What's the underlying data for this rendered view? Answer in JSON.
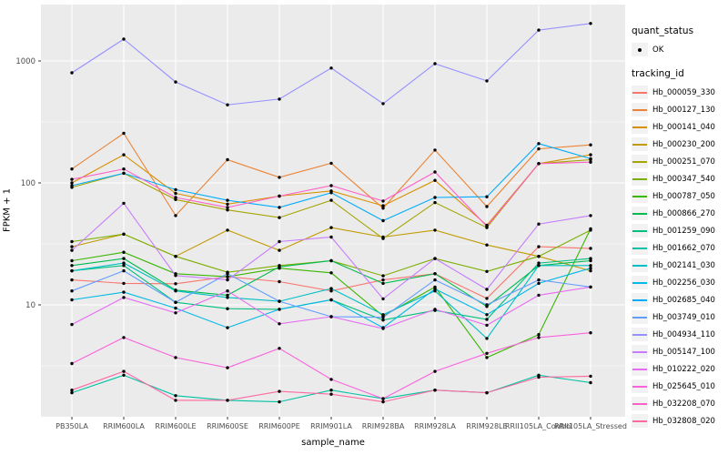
{
  "chart_data": {
    "type": "line",
    "title": "",
    "xlabel": "sample_name",
    "ylabel": "FPKM + 1",
    "yscale": "log10",
    "ylim": [
      1.4,
      2600
    ],
    "yticks": [
      10,
      100,
      1000
    ],
    "ytick_labels": [
      "10",
      "100",
      "1000"
    ],
    "yminor": [
      3.162,
      31.62,
      316.2
    ],
    "grid": "on",
    "legend_position": "right",
    "legend": {
      "quant_status_title": "quant_status",
      "quant_status_value": "OK",
      "tracking_id_title": "tracking_id"
    },
    "categories": [
      "PB350LA",
      "RRIM600LA",
      "RRIM600LE",
      "RRIM600SE",
      "RRIM600PE",
      "RRIM901LA",
      "RRIM928BA",
      "RRIM928LA",
      "RRIM928LE",
      "RRII105LA_Control",
      "RRII105LA_Stressed"
    ],
    "series": [
      {
        "name": "Hb_000059_330",
        "color": "#F8766D",
        "values": [
          16,
          15,
          14.9,
          17,
          15.5,
          13,
          16,
          18,
          11.3,
          30,
          29
        ]
      },
      {
        "name": "Hb_000127_130",
        "color": "#EB8335",
        "values": [
          130,
          255,
          54,
          155,
          111,
          145,
          62,
          186,
          64,
          190,
          205
        ]
      },
      {
        "name": "Hb_000141_040",
        "color": "#D89000",
        "values": [
          100,
          170,
          82,
          67,
          78,
          86,
          65,
          105,
          45,
          144,
          170
        ]
      },
      {
        "name": "Hb_000230_200",
        "color": "#C09B00",
        "values": [
          30,
          38,
          25,
          41,
          28,
          43,
          36,
          41,
          31,
          25,
          19
        ]
      },
      {
        "name": "Hb_000251_070",
        "color": "#A3A500",
        "values": [
          92,
          120,
          73,
          60,
          52,
          72,
          35,
          69,
          43,
          144,
          155
        ]
      },
      {
        "name": "Hb_000347_540",
        "color": "#7CAE00",
        "values": [
          33,
          38,
          25,
          18.5,
          21,
          23,
          17.3,
          24,
          18.8,
          25,
          41
        ]
      },
      {
        "name": "Hb_000787_050",
        "color": "#39B600",
        "values": [
          23,
          27,
          18,
          17,
          20,
          18.3,
          8.1,
          14,
          3.7,
          5.7,
          42
        ]
      },
      {
        "name": "Hb_000866_270",
        "color": "#00BB4E",
        "values": [
          21,
          24,
          13.2,
          12,
          20.5,
          23,
          15,
          18,
          9.7,
          21,
          23
        ]
      },
      {
        "name": "Hb_001259_090",
        "color": "#00BF7D",
        "values": [
          19,
          21,
          10.5,
          9.3,
          9.2,
          11,
          7.5,
          9,
          7.6,
          22,
          24
        ]
      },
      {
        "name": "Hb_001662_070",
        "color": "#00C1A3",
        "values": [
          1.9,
          2.65,
          1.8,
          1.65,
          1.6,
          2.0,
          1.7,
          2.0,
          1.9,
          2.65,
          2.3
        ]
      },
      {
        "name": "Hb_002141_030",
        "color": "#00BFC4",
        "values": [
          19,
          22,
          13,
          11.5,
          10.7,
          13.6,
          8.3,
          13,
          5.3,
          21,
          21
        ]
      },
      {
        "name": "Hb_002256_030",
        "color": "#00B8E5",
        "values": [
          11,
          12.7,
          9.4,
          6.5,
          9.2,
          11,
          6.5,
          13.5,
          8.3,
          15,
          20
        ]
      },
      {
        "name": "Hb_002685_040",
        "color": "#00ACFC",
        "values": [
          95,
          120,
          88,
          72,
          63,
          83,
          49,
          76,
          77,
          210,
          158
        ]
      },
      {
        "name": "Hb_003749_010",
        "color": "#619CFF",
        "values": [
          13,
          19,
          10.5,
          18,
          10.7,
          8,
          7.9,
          16,
          10,
          16,
          14
        ]
      },
      {
        "name": "Hb_004934_110",
        "color": "#9590FF",
        "values": [
          800,
          1510,
          672,
          437,
          487,
          874,
          447,
          950,
          686,
          1790,
          2030
        ]
      },
      {
        "name": "Hb_005147_100",
        "color": "#C77CFF",
        "values": [
          28,
          68,
          17.4,
          16,
          33,
          36,
          11.2,
          24,
          13.4,
          46,
          54
        ]
      },
      {
        "name": "Hb_010222_020",
        "color": "#E76BF3",
        "values": [
          6.9,
          11.5,
          8.6,
          13,
          7,
          8,
          6.4,
          9.2,
          6.8,
          12,
          14
        ]
      },
      {
        "name": "Hb_025645_010",
        "color": "#FA62DB",
        "values": [
          3.3,
          5.4,
          3.7,
          3.05,
          4.4,
          2.45,
          1.7,
          2.85,
          4.0,
          5.4,
          5.9
        ]
      },
      {
        "name": "Hb_032208_070",
        "color": "#FF61C9",
        "values": [
          107,
          130,
          76,
          63,
          78,
          95,
          71,
          123,
          44,
          144,
          148
        ]
      },
      {
        "name": "Hb_032808_020",
        "color": "#FF68A1",
        "values": [
          2.0,
          2.85,
          1.65,
          1.65,
          1.95,
          1.85,
          1.6,
          2.0,
          1.9,
          2.55,
          2.6
        ]
      }
    ],
    "point_color": "#000000",
    "panel_bg": "#EBEBEB",
    "grid_color": "#FFFFFF",
    "tick_text_color": "#4D4D4D"
  }
}
